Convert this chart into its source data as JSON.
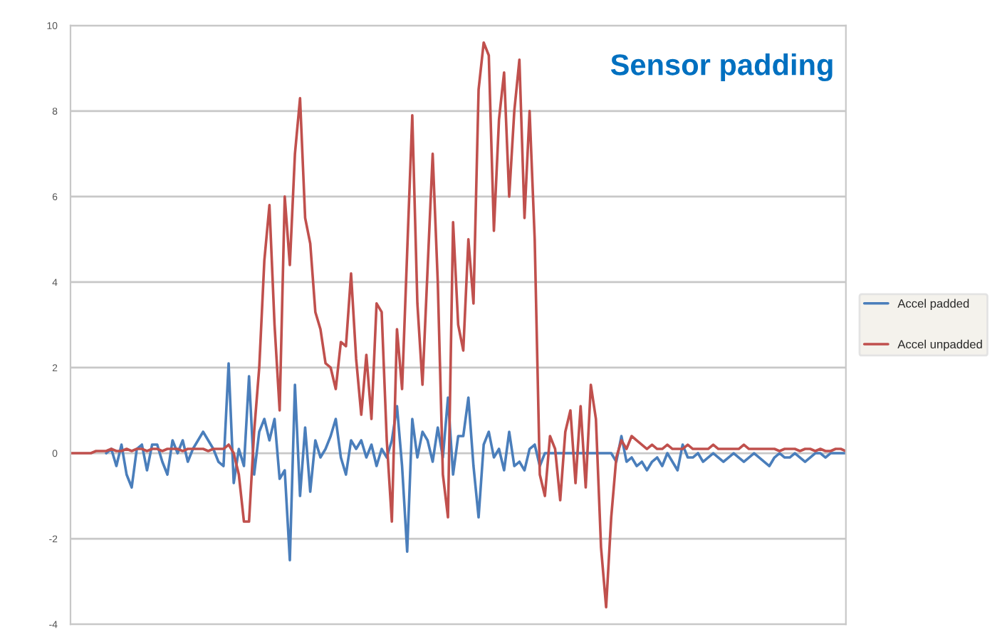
{
  "chart_data": {
    "type": "line",
    "title": "Sensor padding",
    "categories": [
      null,
      null,
      null,
      null,
      null,
      null,
      null,
      null,
      null,
      null,
      null,
      null,
      null,
      null,
      null,
      null,
      null,
      null,
      null,
      null,
      null,
      null,
      null,
      null,
      null,
      null,
      null,
      null,
      null,
      null,
      null,
      null,
      null,
      null,
      null,
      null,
      null,
      null,
      null,
      null,
      null,
      null,
      null,
      null,
      null,
      null,
      null,
      null,
      null,
      null,
      null,
      null,
      null,
      null,
      null,
      null,
      null,
      null,
      null,
      null,
      null,
      null,
      null,
      null,
      null,
      null,
      null,
      null,
      null,
      null,
      null,
      null,
      null,
      null,
      null,
      null,
      null,
      null,
      null,
      null,
      null,
      null,
      null,
      null,
      null,
      null,
      null,
      null,
      null,
      null,
      null,
      null,
      null,
      null,
      null,
      null,
      null,
      null,
      null,
      null,
      null,
      null,
      null,
      null,
      null,
      null,
      null,
      null,
      null,
      null,
      null,
      null,
      null,
      null,
      null,
      null,
      null,
      null,
      null,
      null,
      null,
      null,
      null,
      null,
      null,
      null,
      null,
      null,
      null,
      null,
      null,
      null,
      null,
      null,
      null,
      null,
      null,
      null,
      null,
      null,
      null,
      null,
      null,
      null,
      null,
      null,
      null,
      null,
      null,
      null,
      null,
      null,
      null
    ],
    "series": [
      {
        "name": "Accel padded",
        "color": "#4a7ebb",
        "values": [
          null,
          null,
          null,
          null,
          null,
          null,
          null,
          0,
          0.1,
          -0.3,
          0.2,
          -0.5,
          -0.8,
          0.1,
          0.2,
          -0.4,
          0.2,
          0.2,
          -0.2,
          -0.5,
          0.3,
          0.0,
          0.3,
          -0.2,
          0.1,
          0.3,
          0.5,
          0.3,
          0.1,
          -0.2,
          -0.3,
          2.1,
          -0.7,
          0.1,
          -0.3,
          1.8,
          -0.5,
          0.5,
          0.8,
          0.3,
          0.8,
          -0.6,
          -0.4,
          -2.5,
          1.6,
          -1.0,
          0.6,
          -0.9,
          0.3,
          -0.1,
          0.1,
          0.4,
          0.8,
          -0.1,
          -0.5,
          0.3,
          0.1,
          0.3,
          -0.1,
          0.2,
          -0.3,
          0.1,
          -0.1,
          0.3,
          1.1,
          -0.3,
          -2.3,
          0.8,
          -0.1,
          0.5,
          0.3,
          -0.2,
          0.6,
          -0.1,
          1.3,
          -0.5,
          0.4,
          0.4,
          1.3,
          -0.3,
          -1.5,
          0.2,
          0.5,
          -0.1,
          0.1,
          -0.4,
          0.5,
          -0.3,
          -0.2,
          -0.4,
          0.1,
          0.2,
          -0.3,
          0.0,
          0,
          0,
          0,
          0,
          0,
          0,
          0,
          0,
          0,
          0,
          0,
          0,
          0,
          -0.2,
          0.4,
          -0.2,
          -0.1,
          -0.3,
          -0.2,
          -0.4,
          -0.2,
          -0.1,
          -0.3,
          0.0,
          -0.2,
          -0.4,
          0.2,
          -0.1,
          -0.1,
          0.0,
          -0.2,
          -0.1,
          0.0,
          -0.1,
          -0.2,
          -0.1,
          0.0,
          -0.1,
          -0.2,
          -0.1,
          0.0,
          -0.1,
          -0.2,
          -0.3,
          -0.1,
          0.0,
          -0.1,
          -0.1,
          0.0,
          -0.1,
          -0.2,
          -0.1,
          0.0,
          0.0,
          -0.1,
          0.0,
          0.0,
          0.0,
          0.0
        ]
      },
      {
        "name": "Accel unpadded",
        "color": "#c0504d",
        "values": [
          0,
          0,
          0,
          0,
          0,
          0.05,
          0.05,
          0.05,
          0.1,
          0.05,
          0.05,
          0.1,
          0.05,
          0.1,
          0.1,
          0.05,
          0.1,
          0.1,
          0.05,
          0.1,
          0.1,
          0.1,
          0.05,
          0.1,
          0.1,
          0.1,
          0.1,
          0.05,
          0.1,
          0.1,
          0.1,
          0.2,
          0.0,
          -0.5,
          -1.6,
          -1.6,
          0.5,
          2.0,
          4.5,
          5.8,
          3.0,
          1.0,
          6.0,
          4.4,
          7.0,
          8.3,
          5.5,
          4.9,
          3.3,
          2.9,
          2.1,
          2.0,
          1.5,
          2.6,
          2.5,
          4.2,
          2.2,
          0.9,
          2.3,
          0.8,
          3.5,
          3.3,
          0.3,
          -1.6,
          2.9,
          1.5,
          4.7,
          7.9,
          3.5,
          1.6,
          4.3,
          7.0,
          4.0,
          -0.5,
          -1.5,
          5.4,
          3.0,
          2.4,
          5.0,
          3.5,
          8.5,
          9.6,
          9.3,
          5.2,
          7.8,
          8.9,
          6.0,
          8.0,
          9.2,
          5.5,
          8.0,
          5.0,
          -0.5,
          -1.0,
          0.4,
          0.1,
          -1.1,
          0.5,
          1.0,
          -0.7,
          1.1,
          -0.8,
          1.6,
          0.8,
          -2.2,
          -3.6,
          -1.5,
          -0.1,
          0.3,
          0.1,
          0.4,
          0.3,
          0.2,
          0.1,
          0.2,
          0.1,
          0.1,
          0.2,
          0.1,
          0.1,
          0.1,
          0.2,
          0.1,
          0.1,
          0.1,
          0.1,
          0.2,
          0.1,
          0.1,
          0.1,
          0.1,
          0.1,
          0.2,
          0.1,
          0.1,
          0.1,
          0.1,
          0.1,
          0.1,
          0.05,
          0.1,
          0.1,
          0.1,
          0.05,
          0.1,
          0.1,
          0.05,
          0.1,
          0.05,
          0.05,
          0.1,
          0.1,
          0.05
        ]
      }
    ],
    "ylim": [
      -4,
      10
    ],
    "yticks": [
      -4,
      -2,
      0,
      2,
      4,
      6,
      8,
      10
    ],
    "grid": "y",
    "legend": "right",
    "tick_labels": "y",
    "marker": "none",
    "line_style": "solid"
  }
}
